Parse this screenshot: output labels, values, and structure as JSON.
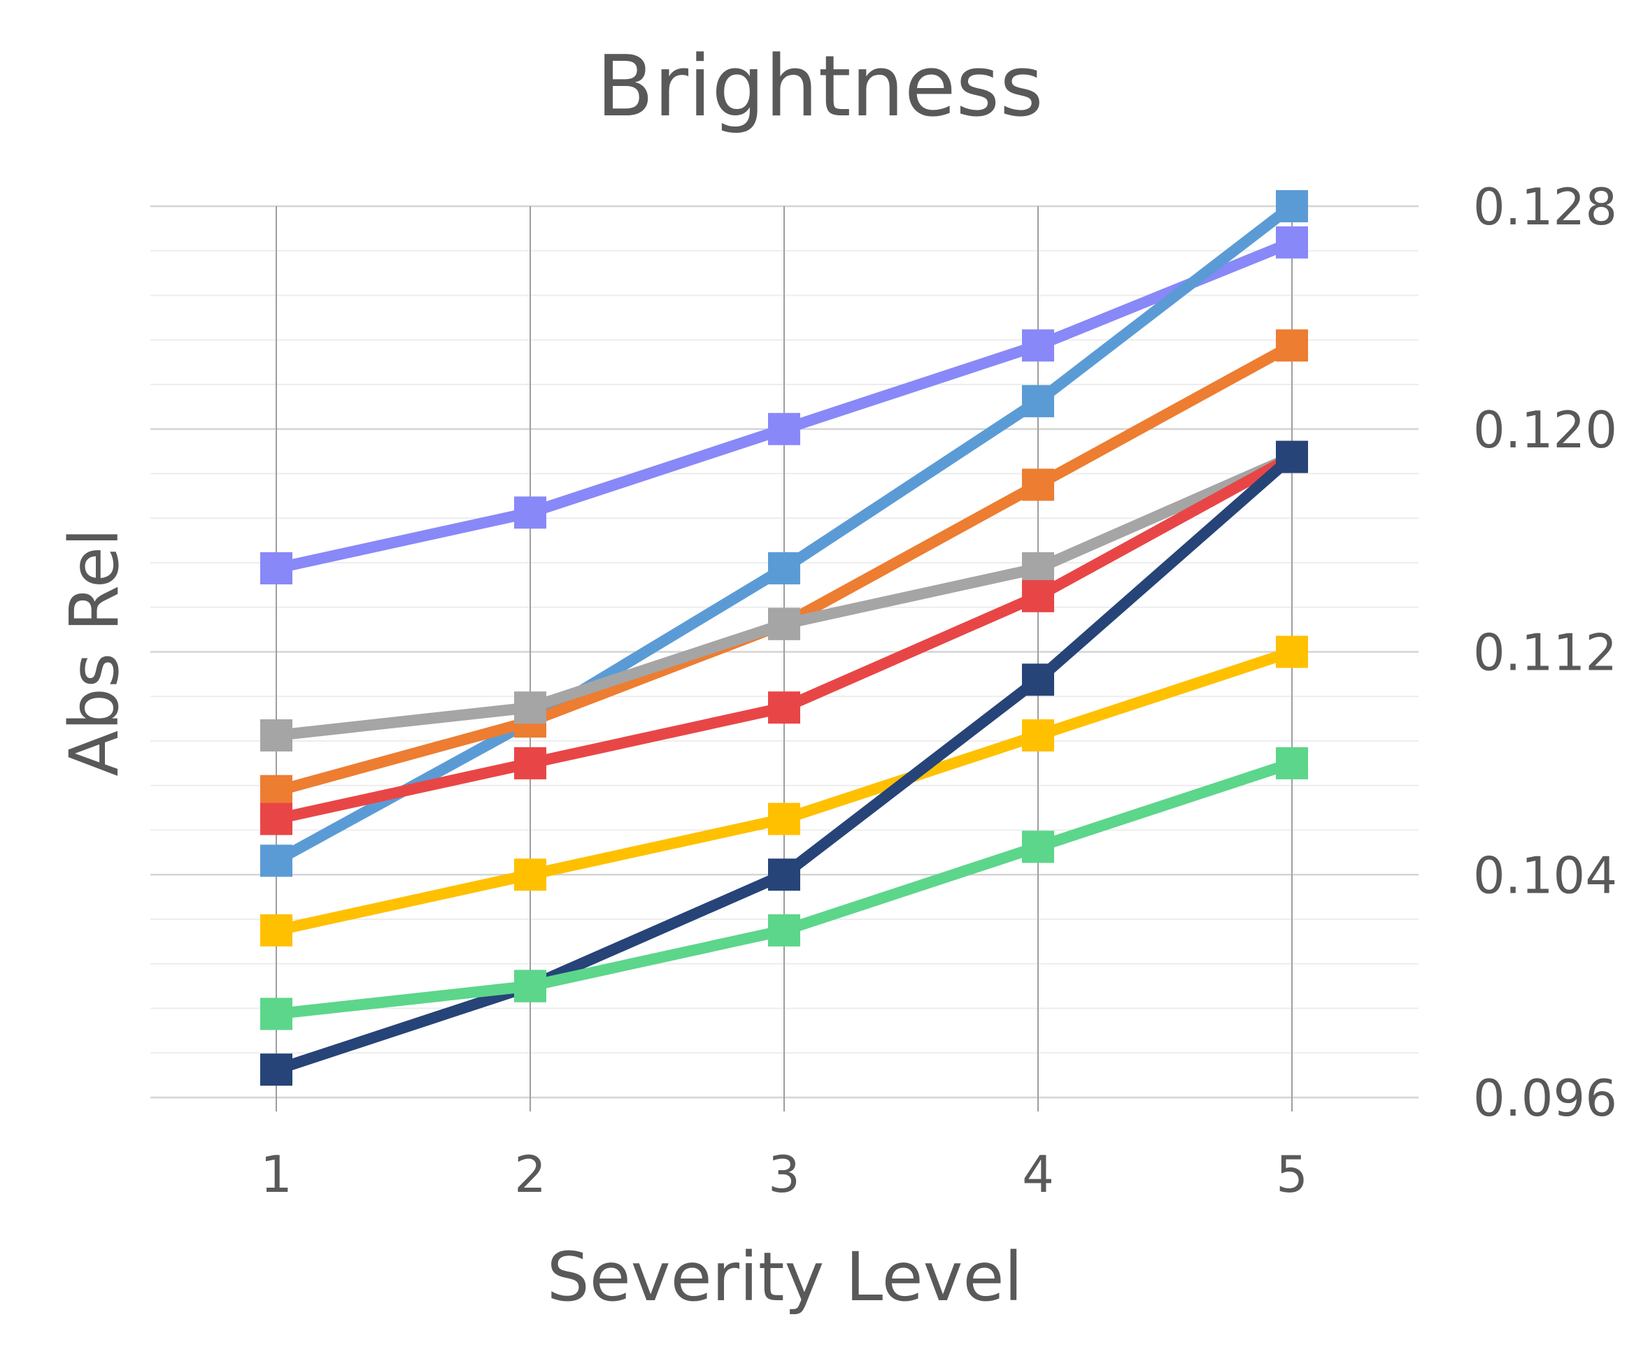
{
  "chart_data": {
    "type": "line",
    "title": "Brightness",
    "xlabel": "Severity Level",
    "ylabel": "Abs Rel",
    "categories": [
      "1",
      "2",
      "3",
      "4",
      "5"
    ],
    "y_ticks": [
      "0.096",
      "0.104",
      "0.112",
      "0.120",
      "0.128"
    ],
    "ylim": [
      0.096,
      0.128
    ],
    "y_axis_side": "right",
    "grid": true,
    "legend": "none",
    "marker": "square",
    "series": [
      {
        "color": "#8888F8",
        "values": [
          0.115,
          0.117,
          0.12,
          0.123,
          0.1267
        ]
      },
      {
        "color": "#5B9BD5",
        "values": [
          0.1045,
          0.1095,
          0.115,
          0.121,
          0.128
        ]
      },
      {
        "color": "#ED7D31",
        "values": [
          0.107,
          0.1095,
          0.113,
          0.118,
          0.123
        ]
      },
      {
        "color": "#A5A5A5",
        "values": [
          0.109,
          0.11,
          0.113,
          0.115,
          0.119
        ]
      },
      {
        "color": "#E84646",
        "values": [
          0.106,
          0.108,
          0.11,
          0.114,
          0.119
        ]
      },
      {
        "color": "#FFC000",
        "values": [
          0.102,
          0.104,
          0.106,
          0.109,
          0.112
        ]
      },
      {
        "color": "#264478",
        "values": [
          0.097,
          0.1,
          0.104,
          0.111,
          0.119
        ]
      },
      {
        "color": "#5CD68A",
        "values": [
          0.099,
          0.1,
          0.102,
          0.105,
          0.108
        ]
      }
    ]
  }
}
